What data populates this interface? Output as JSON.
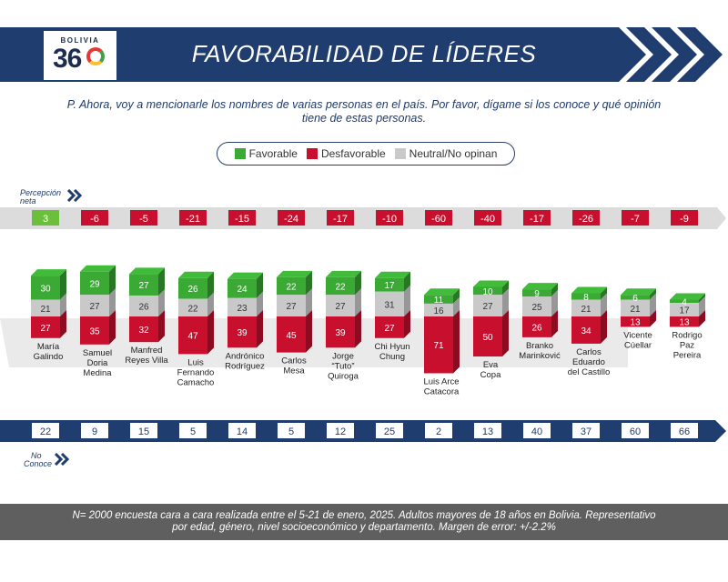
{
  "logo": {
    "small_text": "BOLIVIA",
    "big_text": "36"
  },
  "header": {
    "title": "FAVORABILIDAD DE LÍDERES"
  },
  "question": "P. Ahora, voy a mencionarle los nombres de varias personas en el país. Por favor, dígame si los conoce y qué opinión tiene de estas personas.",
  "legend": {
    "favorable": "Favorable",
    "desfavorable": "Desfavorable",
    "neutral": "Neutral/No opinan"
  },
  "labels": {
    "percepcion_neta": [
      "Percepción",
      "neta"
    ],
    "no_conoce": [
      "No",
      "Conoce"
    ]
  },
  "colors": {
    "favorable": "#3aaa35",
    "desfavorable": "#c8102e",
    "neutral": "#c9c9c9",
    "navy": "#1f3d6e",
    "positive_net": "#6cbf3b"
  },
  "chart_data": {
    "type": "bar",
    "stacked": true,
    "categories": [
      [
        "María",
        "Galindo"
      ],
      [
        "Samuel",
        "Doria",
        "Medina"
      ],
      [
        "Manfred",
        "Reyes Villa"
      ],
      [
        "Luis",
        "Fernando",
        "Camacho"
      ],
      [
        "Andrónico",
        "Rodríguez"
      ],
      [
        "Carlos",
        "Mesa"
      ],
      [
        "Jorge",
        "“Tuto”",
        "Quiroga"
      ],
      [
        "Chi Hyun",
        "Chung"
      ],
      [
        "Luis Arce",
        "Catacora"
      ],
      [
        "Eva",
        "Copa"
      ],
      [
        "Branko",
        "Marinković"
      ],
      [
        "Carlos",
        "Eduardo",
        "del Castillo"
      ],
      [
        "Vicente",
        "Cúellar"
      ],
      [
        "Rodrigo",
        "Paz",
        "Pereira"
      ]
    ],
    "series": [
      {
        "name": "Favorable",
        "values": [
          30,
          29,
          27,
          26,
          24,
          22,
          22,
          17,
          11,
          10,
          9,
          8,
          6,
          4
        ]
      },
      {
        "name": "Neutral/No opinan",
        "values": [
          21,
          27,
          26,
          22,
          23,
          27,
          27,
          31,
          16,
          27,
          25,
          21,
          21,
          17
        ]
      },
      {
        "name": "Desfavorable",
        "values": [
          27,
          35,
          32,
          47,
          39,
          45,
          39,
          27,
          71,
          50,
          26,
          34,
          13,
          13
        ]
      }
    ],
    "net_perception": [
      3,
      -6,
      -5,
      -21,
      -15,
      -24,
      -17,
      -10,
      -60,
      -40,
      -17,
      -26,
      -7,
      -9
    ],
    "no_conoce": [
      22,
      9,
      15,
      5,
      14,
      5,
      12,
      25,
      2,
      13,
      40,
      37,
      60,
      66
    ]
  },
  "footer": {
    "line1": "N= 2000 encuesta cara a cara realizada entre el 5-21 de enero, 2025. Adultos mayores de 18 años en Bolivia. Representativo",
    "line2": "por edad, género, nivel socioeconómico y departamento. Margen de error: +/-2.2%"
  }
}
